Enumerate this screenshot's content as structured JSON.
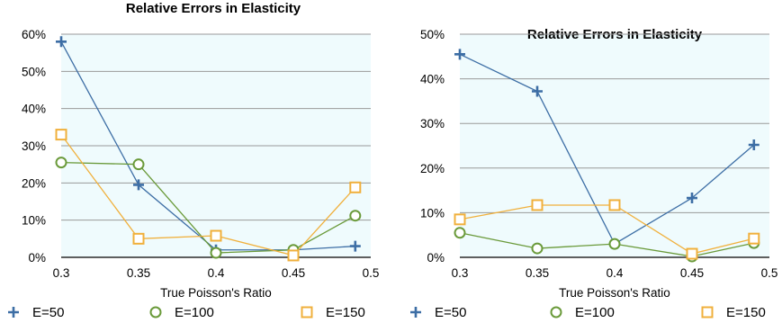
{
  "chart_data": [
    {
      "type": "line",
      "title": "Relative Errors in Elasticity",
      "xlabel": "True Poisson's Ratio",
      "ylabel": "",
      "xlim": [
        0.3,
        0.5
      ],
      "ylim": [
        0,
        0.6
      ],
      "x_ticks": [
        "0.3",
        "0.35",
        "0.4",
        "0.45",
        "0.5"
      ],
      "y_ticks": [
        "0%",
        "10%",
        "20%",
        "30%",
        "40%",
        "50%",
        "60%"
      ],
      "grid": true,
      "legend_position": "bottom",
      "x": [
        0.3,
        0.35,
        0.4,
        0.45,
        0.49
      ],
      "series": [
        {
          "name": "E=50",
          "marker": "plus",
          "color": "#3d6ea5",
          "values": [
            0.58,
            0.195,
            0.02,
            0.02,
            0.03
          ]
        },
        {
          "name": "E=100",
          "marker": "circle",
          "color": "#6a9a3a",
          "values": [
            0.255,
            0.25,
            0.012,
            0.02,
            0.112
          ]
        },
        {
          "name": "E=150",
          "marker": "square",
          "color": "#f0b03c",
          "values": [
            0.33,
            0.05,
            0.058,
            0.005,
            0.188
          ]
        }
      ]
    },
    {
      "type": "line",
      "title": "Relative Errors in Elasticity",
      "xlabel": "True Poisson's Ratio",
      "ylabel": "",
      "xlim": [
        0.3,
        0.5
      ],
      "ylim": [
        0,
        0.5
      ],
      "x_ticks": [
        "0.3",
        "0.35",
        "0.4",
        "0.45",
        "0.5"
      ],
      "y_ticks": [
        "0%",
        "10%",
        "20%",
        "30%",
        "40%",
        "50%"
      ],
      "grid": true,
      "legend_position": "bottom",
      "x": [
        0.3,
        0.35,
        0.4,
        0.45,
        0.49
      ],
      "series": [
        {
          "name": "E=50",
          "marker": "plus",
          "color": "#3d6ea5",
          "values": [
            0.455,
            0.372,
            0.03,
            0.133,
            0.252
          ]
        },
        {
          "name": "E=100",
          "marker": "circle",
          "color": "#6a9a3a",
          "values": [
            0.055,
            0.02,
            0.03,
            0.002,
            0.032
          ]
        },
        {
          "name": "E=150",
          "marker": "square",
          "color": "#f0b03c",
          "values": [
            0.085,
            0.117,
            0.117,
            0.008,
            0.042
          ]
        }
      ]
    }
  ]
}
